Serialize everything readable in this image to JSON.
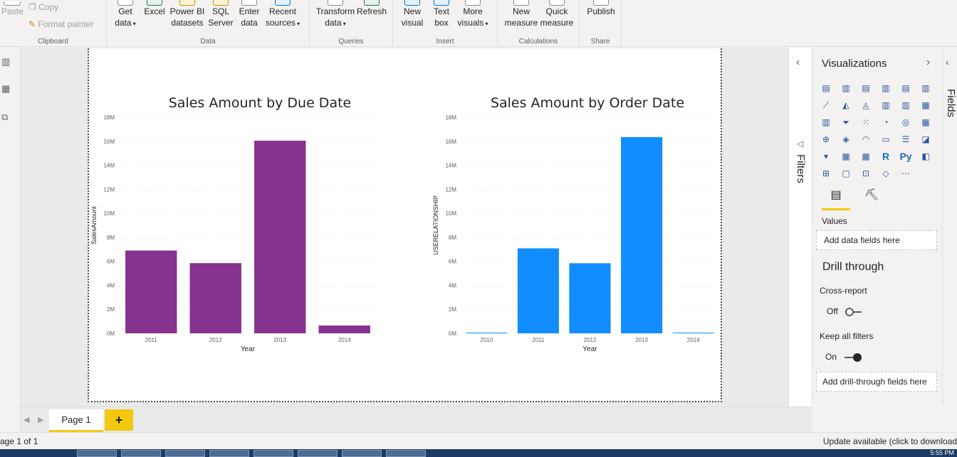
{
  "ribbon": {
    "clipboard": {
      "paste": "Paste",
      "copy": "Copy",
      "format_painter": "Format painter",
      "group": "Clipboard"
    },
    "data": {
      "get_data": "Get",
      "get_data2": "data",
      "excel": "Excel",
      "powerbi": "Power BI",
      "powerbi2": "datasets",
      "sql": "SQL",
      "sql2": "Server",
      "enter": "Enter",
      "enter2": "data",
      "recent": "Recent",
      "recent2": "sources",
      "group": "Data"
    },
    "queries": {
      "transform": "Transform",
      "transform2": "data",
      "refresh": "Refresh",
      "group": "Queries"
    },
    "insert": {
      "new_visual": "New",
      "new_visual2": "visual",
      "text_box": "Text",
      "text_box2": "box",
      "more": "More",
      "more2": "visuals",
      "group": "Insert"
    },
    "calculations": {
      "new_measure": "New",
      "new_measure2": "measure",
      "quick": "Quick",
      "quick2": "measure",
      "group": "Calculations"
    },
    "share": {
      "publish": "Publish",
      "group": "Share"
    }
  },
  "chart_data": [
    {
      "type": "bar",
      "title": "Sales Amount by Due Date",
      "xlabel": "Year",
      "ylabel": "SalesAmount",
      "categories": [
        "2011",
        "2012",
        "2013",
        "2014"
      ],
      "values": [
        6.9,
        5.85,
        16.05,
        0.65
      ],
      "unit": "M",
      "ylim": [
        0,
        18
      ],
      "yticks": [
        "0M",
        "2M",
        "4M",
        "6M",
        "8M",
        "10M",
        "12M",
        "14M",
        "16M",
        "18M"
      ],
      "color": "#86328f",
      "grid": true
    },
    {
      "type": "bar",
      "title": "Sales Amount by Order Date",
      "xlabel": "Year",
      "ylabel": "USERELATIONSHIP",
      "categories": [
        "2010",
        "2011",
        "2012",
        "2013",
        "2014"
      ],
      "values": [
        0.04,
        7.08,
        5.84,
        16.35,
        0.05
      ],
      "unit": "M",
      "ylim": [
        0,
        18
      ],
      "yticks": [
        "0M",
        "2M",
        "4M",
        "6M",
        "8M",
        "10M",
        "12M",
        "14M",
        "16M",
        "18M"
      ],
      "color": "#118dff",
      "grid": true
    }
  ],
  "filters": {
    "label": "Filters"
  },
  "visualizations": {
    "title": "Visualizations",
    "values_label": "Values",
    "values_placeholder": "Add data fields here",
    "drill_title": "Drill through",
    "cross_report": "Cross-report",
    "cross_state": "Off",
    "keep_filters": "Keep all filters",
    "keep_state": "On",
    "drill_placeholder": "Add drill-through fields here",
    "icons": [
      "stacked-bar-icon",
      "stacked-column-icon",
      "clustered-bar-icon",
      "clustered-column-icon",
      "100-bar-icon",
      "100-column-icon",
      "line-chart-icon",
      "area-chart-icon",
      "stacked-area-icon",
      "line-column-icon",
      "line-clustered-icon",
      "ribbon-chart-icon",
      "waterfall-icon",
      "funnel-icon",
      "scatter-icon",
      "pie-chart-icon",
      "donut-chart-icon",
      "treemap-icon",
      "map-icon",
      "filled-map-icon",
      "gauge-icon",
      "card-icon",
      "multirow-card-icon",
      "kpi-icon",
      "slicer-icon",
      "table-icon",
      "matrix-icon",
      "r-visual-icon",
      "python-visual-icon",
      "key-influencers-icon",
      "decomposition-tree-icon",
      "qa-icon",
      "smart-narrative-icon",
      "paginated-icon",
      "more-icon"
    ]
  },
  "fields": {
    "label": "Fields"
  },
  "pages": {
    "page1": "Page 1",
    "add": "+"
  },
  "status": {
    "left": "age 1 of 1",
    "right": "Update available (click to download"
  },
  "taskbar": {
    "clock": "5:55 PM"
  }
}
